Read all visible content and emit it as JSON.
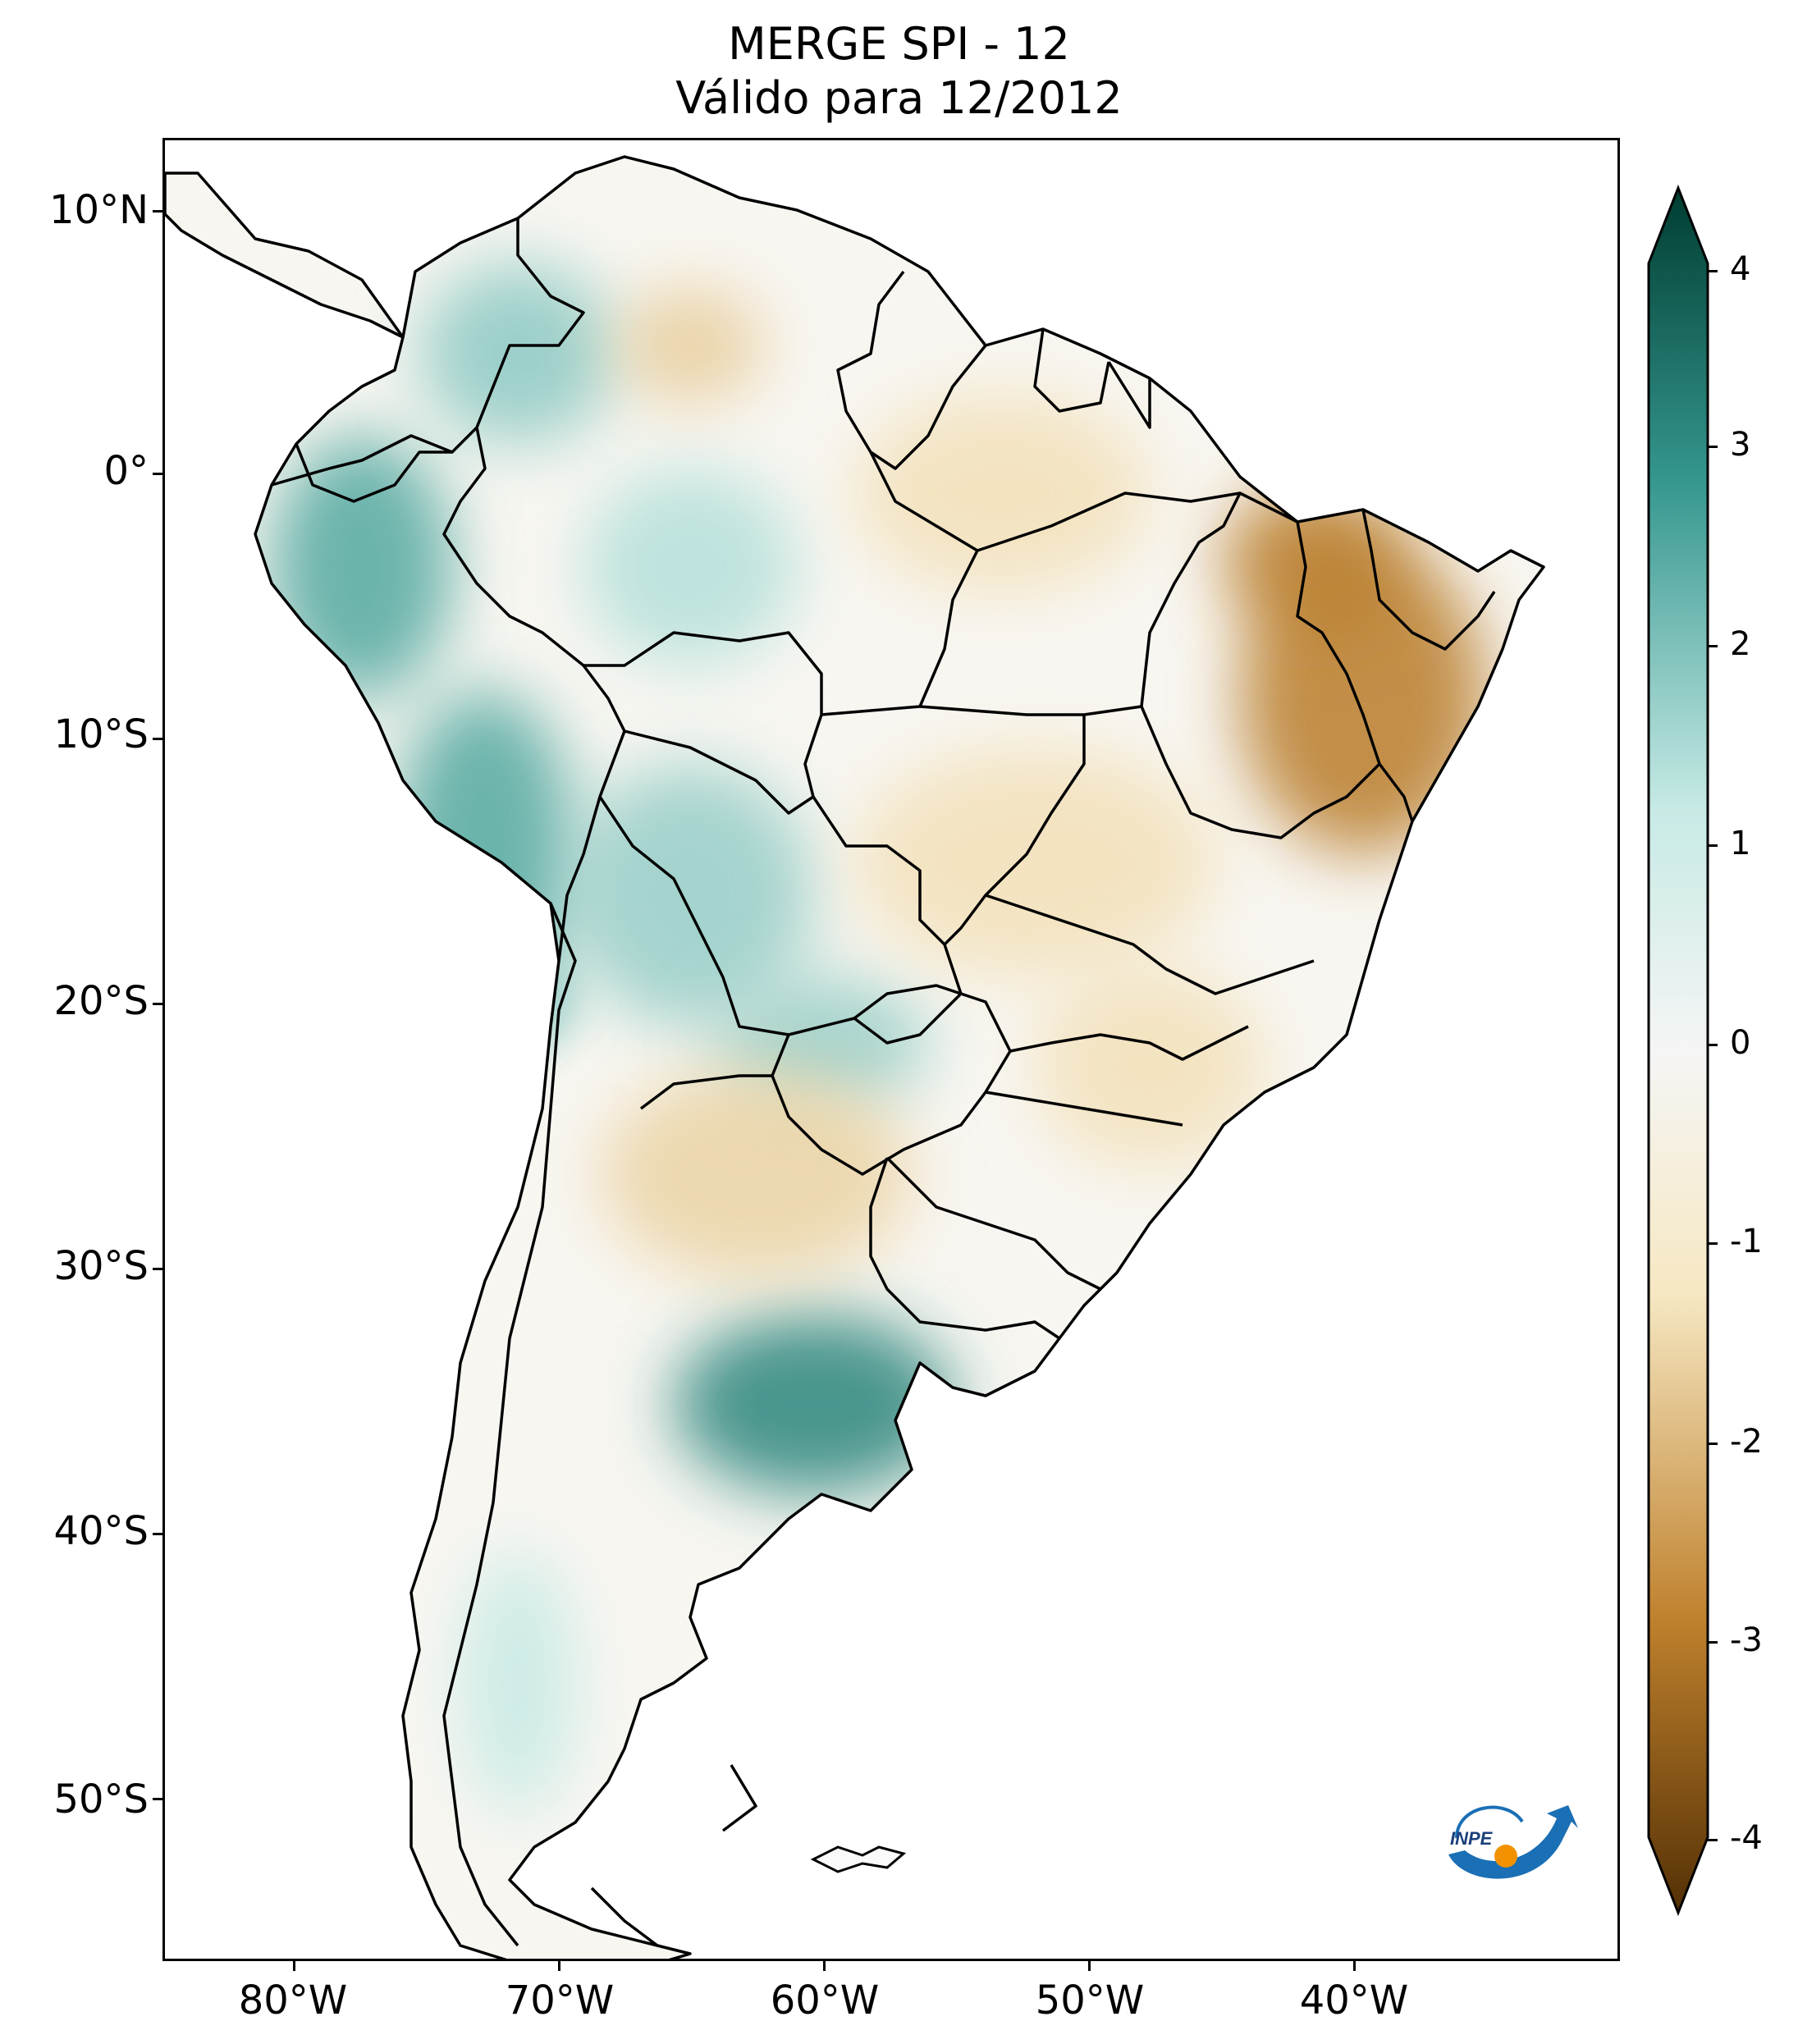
{
  "title": {
    "line1": "MERGE   SPI - 12",
    "line2": "Válido para 12/2012"
  },
  "axes": {
    "lat_labels": [
      "10°N",
      "0°",
      "10°S",
      "20°S",
      "30°S",
      "40°S",
      "50°S"
    ],
    "lon_labels": [
      "80°W",
      "70°W",
      "60°W",
      "50°W",
      "40°W"
    ]
  },
  "colorbar": {
    "tick_labels": [
      "4",
      "3",
      "2",
      "1",
      "0",
      "-1",
      "-2",
      "-3",
      "-4"
    ],
    "range": [
      -4,
      4
    ],
    "colors": {
      "very_wet": "#003c30",
      "wet": "#35978f",
      "slightly_wet": "#c7eae5",
      "neutral": "#f5f5f5",
      "slightly_dry": "#f6e8c3",
      "dry": "#bf812d",
      "very_dry": "#543005"
    }
  },
  "logo": {
    "text": "INPE",
    "icon": "inpe-logo-icon"
  },
  "map": {
    "region": "South America",
    "extent_lon": [
      -85,
      -29
    ],
    "extent_lat": [
      -57,
      13
    ],
    "anomalies": [
      {
        "name": "northeast-brazil-drought",
        "spi": -2.6
      },
      {
        "name": "pampas-wet",
        "spi": 2.8
      },
      {
        "name": "peru-andes-wet",
        "spi": 2.2
      },
      {
        "name": "colombia-venezuela-wet",
        "spi": 1.6
      },
      {
        "name": "bolivia-paraguay-wet",
        "spi": 1.5
      },
      {
        "name": "northern-argentina-dry",
        "spi": -1.3
      },
      {
        "name": "central-brazil-dry",
        "spi": -1.1
      },
      {
        "name": "southern-chile-wet",
        "spi": 1.0
      },
      {
        "name": "amazon-wet",
        "spi": 1.2
      },
      {
        "name": "guiana-dry",
        "spi": -1.4
      }
    ]
  }
}
